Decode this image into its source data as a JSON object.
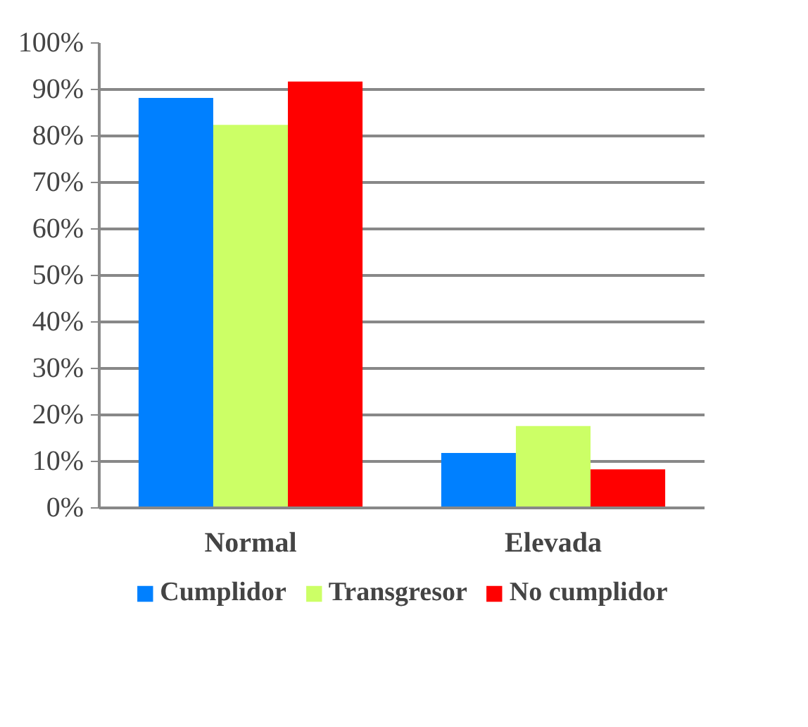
{
  "chart_data": {
    "type": "bar",
    "categories": [
      "Normal",
      "Elevada"
    ],
    "series": [
      {
        "name": "Cumplidor",
        "color": "#0080ff",
        "values": [
          88.2,
          11.8
        ]
      },
      {
        "name": "Transgresor",
        "color": "#ccff66",
        "values": [
          82.4,
          17.6
        ]
      },
      {
        "name": "No cumplidor",
        "color": "#ff0000",
        "values": [
          91.7,
          8.3
        ]
      }
    ],
    "ylim": [
      0,
      100
    ],
    "yticks": [
      {
        "value": 0,
        "label": "0%"
      },
      {
        "value": 10,
        "label": "10%"
      },
      {
        "value": 20,
        "label": "20%"
      },
      {
        "value": 30,
        "label": "30%"
      },
      {
        "value": 40,
        "label": "40%"
      },
      {
        "value": 50,
        "label": "50%"
      },
      {
        "value": 60,
        "label": "60%"
      },
      {
        "value": 70,
        "label": "70%"
      },
      {
        "value": 80,
        "label": "80%"
      },
      {
        "value": 90,
        "label": "90%"
      },
      {
        "value": 100,
        "label": "100%"
      }
    ],
    "grid": "y",
    "legend": "bottom"
  }
}
